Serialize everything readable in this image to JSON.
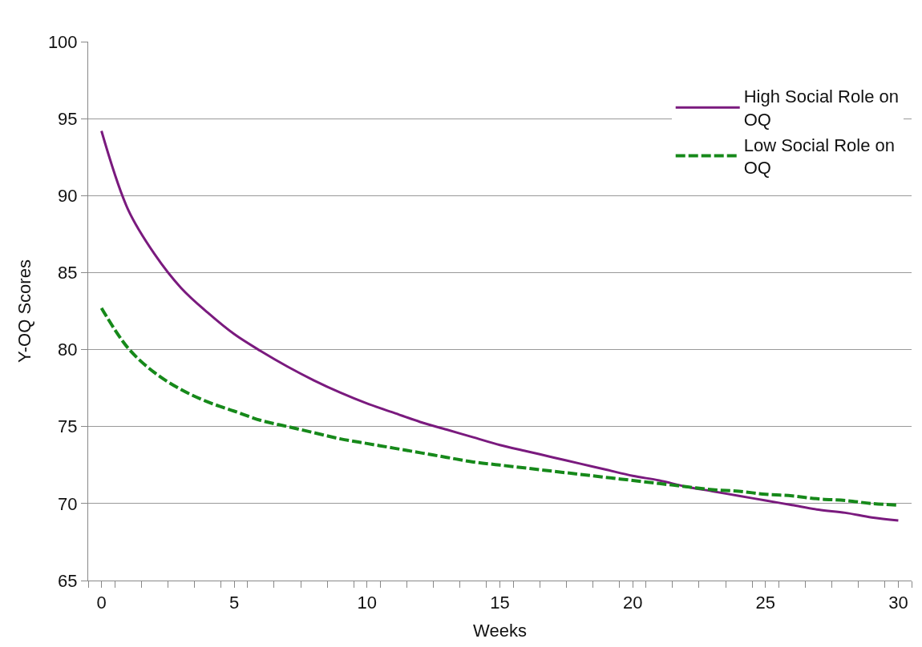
{
  "chart_data": {
    "type": "line",
    "xlabel": "Weeks",
    "ylabel": "Y-OQ Scores",
    "x": [
      0,
      1,
      2,
      3,
      4,
      5,
      6,
      7,
      8,
      9,
      10,
      11,
      12,
      13,
      14,
      15,
      16,
      17,
      18,
      19,
      20,
      21,
      22,
      23,
      24,
      25,
      26,
      27,
      28,
      29,
      30
    ],
    "series": [
      {
        "name": "High Social Role on OQ",
        "color": "#7a1a7e",
        "line_style": "solid",
        "values": [
          94.2,
          89.1,
          86.2,
          84.0,
          82.4,
          81.0,
          79.9,
          78.9,
          78.0,
          77.2,
          76.5,
          75.9,
          75.3,
          74.8,
          74.3,
          73.8,
          73.4,
          73.0,
          72.6,
          72.2,
          71.8,
          71.5,
          71.1,
          70.8,
          70.5,
          70.2,
          69.9,
          69.6,
          69.4,
          69.1,
          68.9
        ]
      },
      {
        "name": "Low Social Role on OQ",
        "color": "#16891a",
        "line_style": "dashed",
        "values": [
          82.7,
          80.1,
          78.5,
          77.4,
          76.6,
          76.0,
          75.4,
          75.0,
          74.6,
          74.2,
          73.9,
          73.6,
          73.3,
          73.0,
          72.7,
          72.5,
          72.3,
          72.1,
          71.9,
          71.7,
          71.5,
          71.3,
          71.1,
          70.9,
          70.8,
          70.6,
          70.5,
          70.3,
          70.2,
          70.0,
          69.9
        ]
      }
    ],
    "xlim": [
      -0.5,
      30.5
    ],
    "xticks": [
      {
        "value": -0.5,
        "label": null
      },
      0,
      {
        "value": 0.5,
        "label": null
      },
      {
        "value": 1.5,
        "label": null
      },
      {
        "value": 2.5,
        "label": null
      },
      {
        "value": 3.5,
        "label": null
      },
      {
        "value": 4.5,
        "label": null
      },
      5,
      {
        "value": 5.5,
        "label": null
      },
      {
        "value": 6.5,
        "label": null
      },
      {
        "value": 7.5,
        "label": null
      },
      {
        "value": 8.5,
        "label": null
      },
      {
        "value": 9.5,
        "label": null
      },
      10,
      {
        "value": 10.5,
        "label": null
      },
      {
        "value": 11.5,
        "label": null
      },
      {
        "value": 12.5,
        "label": null
      },
      {
        "value": 13.5,
        "label": null
      },
      {
        "value": 14.5,
        "label": null
      },
      15,
      {
        "value": 15.5,
        "label": null
      },
      {
        "value": 16.5,
        "label": null
      },
      {
        "value": 17.5,
        "label": null
      },
      {
        "value": 18.5,
        "label": null
      },
      {
        "value": 19.5,
        "label": null
      },
      20,
      {
        "value": 20.5,
        "label": null
      },
      {
        "value": 21.5,
        "label": null
      },
      {
        "value": 22.5,
        "label": null
      },
      {
        "value": 23.5,
        "label": null
      },
      {
        "value": 24.5,
        "label": null
      },
      25,
      {
        "value": 25.5,
        "label": null
      },
      {
        "value": 26.5,
        "label": null
      },
      {
        "value": 27.5,
        "label": null
      },
      {
        "value": 28.5,
        "label": null
      },
      {
        "value": 29.5,
        "label": null
      },
      30,
      {
        "value": 30.5,
        "label": null
      }
    ],
    "ylim": [
      65,
      100
    ],
    "yticks": [
      65,
      70,
      75,
      80,
      85,
      90,
      95,
      100
    ],
    "grid": "y",
    "legend": "top right",
    "marker": "none"
  }
}
